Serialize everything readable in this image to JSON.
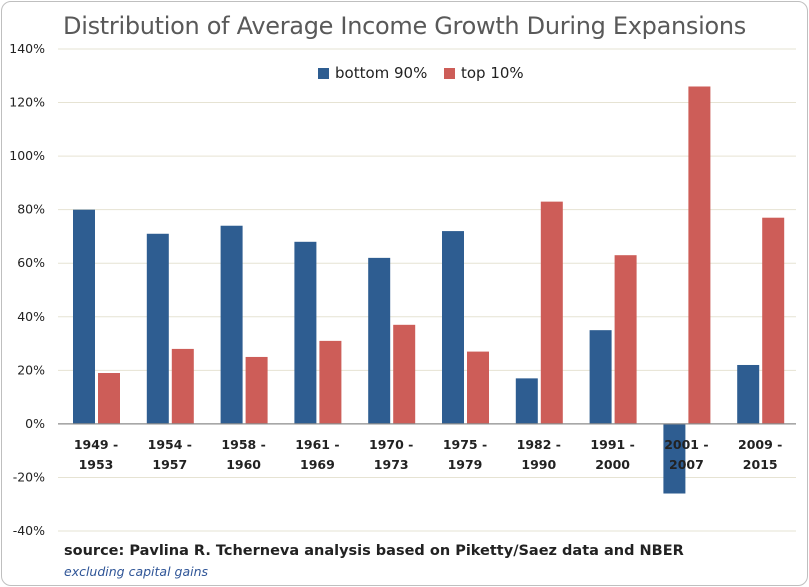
{
  "chart_data": {
    "type": "bar",
    "title": "Distribution of Average Income Growth During Expansions",
    "categories": [
      [
        "1949 -",
        "1953"
      ],
      [
        "1954 -",
        "1957"
      ],
      [
        "1958 -",
        "1960"
      ],
      [
        "1961 -",
        "1969"
      ],
      [
        "1970 -",
        "1973"
      ],
      [
        "1975 -",
        "1979"
      ],
      [
        "1982 -",
        "1990"
      ],
      [
        "1991 -",
        "2000"
      ],
      [
        "2001 -",
        "2007"
      ],
      [
        "2009 -",
        "2015"
      ]
    ],
    "series": [
      {
        "name": "bottom 90%",
        "color": "#2e5d91",
        "values": [
          80,
          71,
          74,
          68,
          62,
          72,
          17,
          35,
          -26,
          22
        ]
      },
      {
        "name": "top 10%",
        "color": "#cd5d58",
        "values": [
          19,
          28,
          25,
          31,
          37,
          27,
          83,
          63,
          126,
          77
        ]
      }
    ],
    "ylim": [
      -40,
      140
    ],
    "yticks": [
      -40,
      -20,
      0,
      20,
      40,
      60,
      80,
      100,
      120,
      140
    ],
    "ytick_labels": [
      "-40%",
      "-20%",
      "0%",
      "20%",
      "40%",
      "60%",
      "80%",
      "100%",
      "120%",
      "140%"
    ],
    "xlabel": "",
    "ylabel": "",
    "grid": true,
    "legend_position": "top-center"
  },
  "footer": {
    "source": "source: Pavlina R. Tcherneva analysis based on Piketty/Saez data and NBER",
    "note": "excluding capital gains"
  }
}
